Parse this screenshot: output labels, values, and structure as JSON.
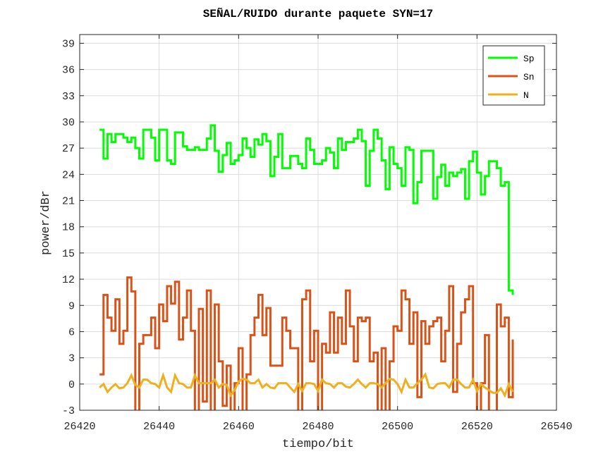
{
  "chart_data": {
    "type": "line",
    "title": "SEÑAL/RUIDO durante paquete SYN=17",
    "xlabel": "tiempo/bit",
    "ylabel": "power/dBr",
    "xlim": [
      26420,
      26540
    ],
    "ylim": [
      -3,
      40
    ],
    "xticks": [
      26420,
      26440,
      26460,
      26480,
      26500,
      26520,
      26540
    ],
    "yticks": [
      -3,
      0,
      3,
      6,
      9,
      12,
      15,
      18,
      21,
      24,
      27,
      30,
      33,
      36,
      39
    ],
    "grid": true,
    "legend_position": "top-right",
    "x_start": 26425,
    "x_step": 1,
    "series": [
      {
        "name": "Sp",
        "color": "#00ff00",
        "style": "stairs",
        "values": [
          29.1,
          25.8,
          28.6,
          27.7,
          28.6,
          28.6,
          28.2,
          27.7,
          28.2,
          27.0,
          25.8,
          29.1,
          29.1,
          28.2,
          25.6,
          29.1,
          29.1,
          25.6,
          25.2,
          28.8,
          28.8,
          27.2,
          26.8,
          26.8,
          27.1,
          26.8,
          26.8,
          28.1,
          29.6,
          26.7,
          24.3,
          26.2,
          27.6,
          25.2,
          25.6,
          26.2,
          28.1,
          27.0,
          26.0,
          28.0,
          27.4,
          28.6,
          27.8,
          23.8,
          26.0,
          28.6,
          24.7,
          24.7,
          26.1,
          26.1,
          25.2,
          24.7,
          28.1,
          26.8,
          25.2,
          25.2,
          25.6,
          27.0,
          26.5,
          24.7,
          28.1,
          26.8,
          27.7,
          27.7,
          28.1,
          29.1,
          27.8,
          22.7,
          26.7,
          29.1,
          28.1,
          25.6,
          22.3,
          27.1,
          25.2,
          24.7,
          22.7,
          27.1,
          26.8,
          20.7,
          23.1,
          26.7,
          26.7,
          26.7,
          21.2,
          23.7,
          25.1,
          22.7,
          24.2,
          23.8,
          24.2,
          24.6,
          21.2,
          25.5,
          26.6,
          24.2,
          21.7,
          23.8,
          25.5,
          25.5,
          24.7,
          22.7,
          23.1,
          10.7,
          10.2
        ]
      },
      {
        "name": "Sn",
        "color": "#d95319",
        "style": "stairs",
        "values": [
          1.1,
          10.2,
          7.6,
          6.1,
          9.7,
          4.6,
          6.1,
          12.2,
          10.6,
          -4,
          4.6,
          5.6,
          5.6,
          7.6,
          4.1,
          9.1,
          7.2,
          11.2,
          9.2,
          11.7,
          5.1,
          7.6,
          10.7,
          6.1,
          -4,
          8.6,
          -2.0,
          10.7,
          -4,
          9.1,
          2.6,
          -2.5,
          2.1,
          -4,
          0.1,
          4.1,
          -4,
          1.1,
          5.6,
          7.6,
          10.2,
          5.6,
          8.7,
          2.1,
          2.1,
          2.1,
          7.6,
          6.1,
          4.1,
          4.1,
          -4,
          9.7,
          10.7,
          2.6,
          6.1,
          -4,
          4.6,
          3.6,
          8.2,
          3.6,
          7.6,
          4.6,
          10.7,
          6.6,
          2.6,
          7.6,
          7.2,
          7.6,
          2.6,
          3.6,
          -4,
          4.1,
          -4,
          2.6,
          6.6,
          6.1,
          10.7,
          9.7,
          4.6,
          8.2,
          -1.5,
          7.2,
          4.6,
          6.6,
          7.2,
          7.6,
          2.6,
          6.1,
          11.2,
          -0.9,
          4.6,
          8.2,
          9.7,
          11.2,
          0.1,
          -4,
          0.1,
          5.6,
          -4,
          -4,
          9.1,
          6.6,
          7.6,
          -1.5,
          5.1
        ]
      },
      {
        "name": "N",
        "color": "#edb120",
        "style": "line",
        "values": [
          -0.4,
          0.0,
          -0.9,
          -0.4,
          0.0,
          -0.5,
          -0.4,
          0.1,
          1.0,
          -0.1,
          -0.4,
          0.5,
          0.5,
          0.1,
          0.0,
          -0.4,
          1.0,
          -0.4,
          -0.9,
          1.0,
          0.1,
          0.0,
          -0.4,
          -0.4,
          1.0,
          0.1,
          0.1,
          0.1,
          0.1,
          0.5,
          -0.4,
          0.0,
          -0.1,
          -1.3,
          -0.7,
          0.3,
          0.6,
          0.5,
          0.1,
          0.1,
          0.5,
          -0.4,
          0.0,
          -0.4,
          -0.5,
          0.1,
          0.1,
          0.1,
          -0.4,
          -0.9,
          0.0,
          -0.8,
          0.1,
          0.1,
          0.0,
          -0.8,
          0.5,
          0.1,
          0.0,
          -0.4,
          0.1,
          0.1,
          -0.3,
          -0.4,
          0.0,
          0.5,
          0.0,
          -0.4,
          0.1,
          0.1,
          0.0,
          -0.4,
          0.1,
          0.6,
          0.5,
          0.0,
          -0.9,
          0.5,
          -0.4,
          -0.4,
          0.1,
          0.5,
          1.1,
          -0.4,
          -0.5,
          0.0,
          0.1,
          0.1,
          -0.4,
          0.5,
          0.5,
          0.0,
          -0.4,
          -0.4,
          0.5,
          -0.8,
          0.0,
          -0.4,
          -0.7,
          -1.0,
          -1.0,
          -0.5,
          -1.3,
          0.0,
          -0.9
        ]
      }
    ]
  }
}
